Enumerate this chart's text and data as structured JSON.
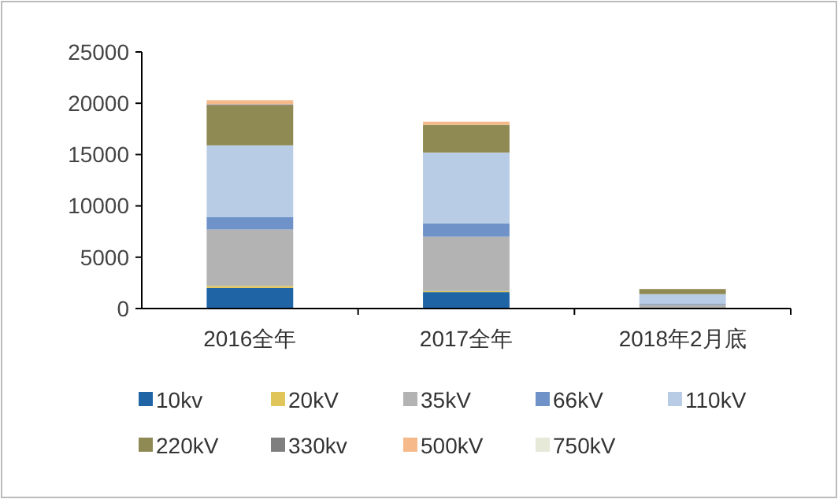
{
  "chart_data": {
    "type": "bar",
    "stacked": true,
    "categories": [
      "2016全年",
      "2017全年",
      "2018年2月底"
    ],
    "series": [
      {
        "name": "10kv",
        "color": "#1f65a6",
        "values": [
          2000,
          1600,
          null
        ]
      },
      {
        "name": "20kV",
        "color": "#e0c55a",
        "values": [
          200,
          100,
          null
        ]
      },
      {
        "name": "35kV",
        "color": "#b3b3b3",
        "values": [
          5500,
          5300,
          400
        ]
      },
      {
        "name": "66kV",
        "color": "#6f93c9",
        "values": [
          1200,
          1300,
          100
        ]
      },
      {
        "name": "110kV",
        "color": "#b8cce6",
        "values": [
          7000,
          6900,
          900
        ]
      },
      {
        "name": "220kV",
        "color": "#8f8a54",
        "values": [
          3900,
          2700,
          500
        ]
      },
      {
        "name": "330kv",
        "color": "#7f7f7f",
        "values": [
          100,
          null,
          null
        ]
      },
      {
        "name": "500kV",
        "color": "#f5b98a",
        "values": [
          400,
          300,
          null
        ]
      },
      {
        "name": "750kV",
        "color": "#e6e8d8",
        "values": [
          null,
          null,
          null
        ]
      }
    ],
    "ylim": [
      0,
      25000
    ],
    "yticks": [
      0,
      5000,
      10000,
      15000,
      20000,
      25000
    ],
    "grid": false,
    "legend": "bottom"
  }
}
